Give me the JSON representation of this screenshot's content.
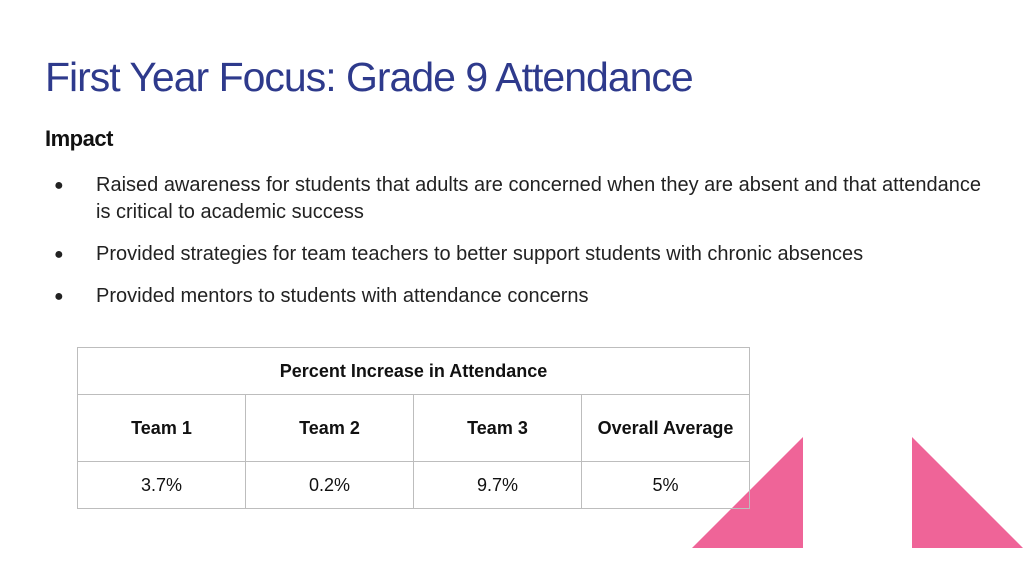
{
  "slide": {
    "title": "First Year Focus: Grade 9 Attendance",
    "subtitle": "Impact",
    "bullet_symbol": "●",
    "bullets": [
      "Raised awareness for students that adults are concerned when they are absent and that attendance is critical to academic success",
      "Provided strategies for team teachers to better support students with chronic absences",
      "Provided mentors to students with attendance concerns"
    ]
  },
  "table": {
    "caption": "Percent Increase in Attendance",
    "headers": [
      "Team 1",
      "Team 2",
      "Team 3",
      "Overall Average"
    ],
    "values": [
      "3.7%",
      "0.2%",
      "9.7%",
      "5%"
    ]
  },
  "colors": {
    "title": "#2e3a8c",
    "accent_pink": "#ef6498",
    "table_border": "#bdbdbd"
  }
}
